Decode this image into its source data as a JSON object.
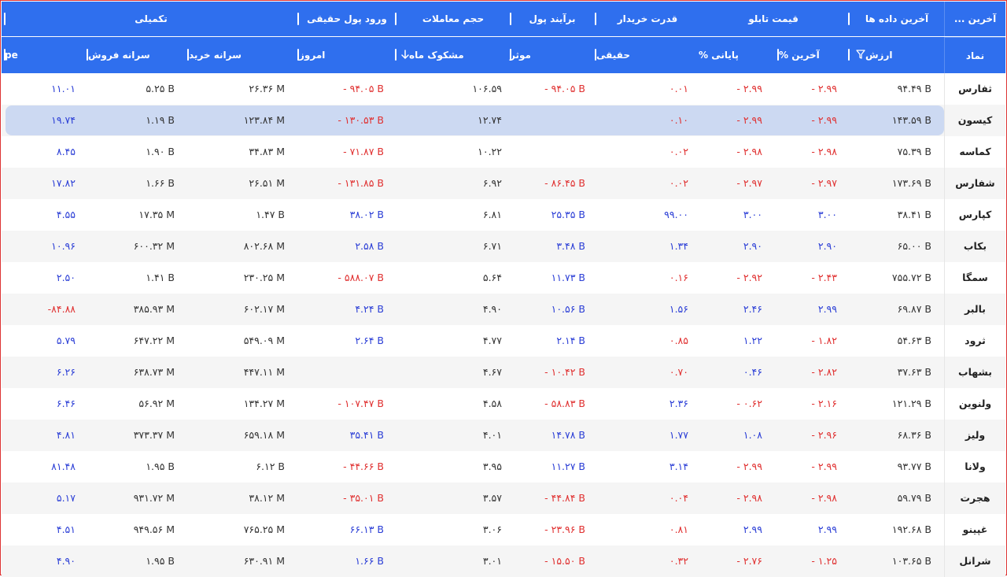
{
  "header_groups": [
    {
      "label": "آخرین ..."
    },
    {
      "label": "آخرین داده ها"
    },
    {
      "label": "قیمت تابلو"
    },
    {
      "label": "قدرت خریدار"
    },
    {
      "label": "برآیند پول"
    },
    {
      "label": "حجم معاملات"
    },
    {
      "label": "ورود پول حقیقی"
    },
    {
      "label": "تکمیلی"
    }
  ],
  "columns": [
    {
      "key": "symbol",
      "label": "نماد"
    },
    {
      "key": "value",
      "label": "ارزش"
    },
    {
      "key": "last_pct",
      "label": "آخرین %"
    },
    {
      "key": "close_pct",
      "label": "پایانی %"
    },
    {
      "key": "real",
      "label": "حقیقی"
    },
    {
      "key": "effective",
      "label": "موثر"
    },
    {
      "key": "suspicious_month",
      "label": "مشکوک ماه"
    },
    {
      "key": "today",
      "label": "امروز"
    },
    {
      "key": "buy_per_capita",
      "label": "سرانه خرید"
    },
    {
      "key": "sell_per_capita",
      "label": "سرانه فروش"
    },
    {
      "key": "pe",
      "label": "pe"
    }
  ],
  "icons": {
    "filter": "filter-icon",
    "sort": "sort-down-icon"
  },
  "colors": {
    "header": "#2f6fee",
    "negative": "#e03030",
    "positive": "#2b3ed6",
    "selected_row": "#ccd9f2",
    "alt_row": "#f5f5f5"
  },
  "selected_row_index": 1,
  "rows": [
    {
      "symbol": "ثفارس",
      "value": "۹۴.۴۹ B",
      "last_pct": "- ۲.۹۹",
      "close_pct": "- ۲.۹۹",
      "real": "۰.۰۱",
      "effective": "- ۹۴.۰۵ B",
      "suspicious_month": "۱۰۶.۵۹",
      "today": "- ۹۴.۰۵ B",
      "buy_per_capita": "۲۶.۳۶ M",
      "sell_per_capita": "۵.۲۵ B",
      "pe": "۱۱.۰۱"
    },
    {
      "symbol": "کیسون",
      "value": "۱۴۳.۵۹ B",
      "last_pct": "- ۲.۹۹",
      "close_pct": "- ۲.۹۹",
      "real": "۰.۱۰",
      "effective": "",
      "suspicious_month": "۱۲.۷۴",
      "today": "- ۱۳۰.۵۳ B",
      "buy_per_capita": "۱۲۳.۸۴ M",
      "sell_per_capita": "۱.۱۹ B",
      "pe": "۱۹.۷۴"
    },
    {
      "symbol": "کماسه",
      "value": "۷۵.۳۹ B",
      "last_pct": "- ۲.۹۸",
      "close_pct": "- ۲.۹۸",
      "real": "۰.۰۲",
      "effective": "",
      "suspicious_month": "۱۰.۲۲",
      "today": "- ۷۱.۸۷ B",
      "buy_per_capita": "۳۴.۸۳ M",
      "sell_per_capita": "۱.۹۰ B",
      "pe": "۸.۴۵"
    },
    {
      "symbol": "شفارس",
      "value": "۱۷۳.۶۹ B",
      "last_pct": "- ۲.۹۷",
      "close_pct": "- ۲.۹۷",
      "real": "۰.۰۲",
      "effective": "- ۸۶.۴۵ B",
      "suspicious_month": "۶.۹۲",
      "today": "- ۱۳۱.۸۵ B",
      "buy_per_capita": "۲۶.۵۱ M",
      "sell_per_capita": "۱.۶۶ B",
      "pe": "۱۷.۸۲"
    },
    {
      "symbol": "کپارس",
      "value": "۳۸.۴۱ B",
      "last_pct": "۳.۰۰",
      "close_pct": "۳.۰۰",
      "real": "۹۹.۰۰",
      "effective": "۲۵.۳۵ B",
      "suspicious_month": "۶.۸۱",
      "today": "۳۸.۰۲ B",
      "buy_per_capita": "۱.۴۷ B",
      "sell_per_capita": "۱۷.۳۵ M",
      "pe": "۴.۵۵"
    },
    {
      "symbol": "بکاب",
      "value": "۶۵.۰۰ B",
      "last_pct": "۲.۹۰",
      "close_pct": "۲.۹۰",
      "real": "۱.۳۴",
      "effective": "۳.۴۸ B",
      "suspicious_month": "۶.۷۱",
      "today": "۲.۵۸ B",
      "buy_per_capita": "۸۰۲.۶۸ M",
      "sell_per_capita": "۶۰۰.۳۲ M",
      "pe": "۱۰.۹۶"
    },
    {
      "symbol": "سمگا",
      "value": "۷۵۵.۷۲ B",
      "last_pct": "- ۲.۴۳",
      "close_pct": "- ۲.۹۲",
      "real": "۰.۱۶",
      "effective": "۱۱.۷۳ B",
      "suspicious_month": "۵.۶۴",
      "today": "- ۵۸۸.۰۷ B",
      "buy_per_capita": "۲۳۰.۲۵ M",
      "sell_per_capita": "۱.۴۱ B",
      "pe": "۲.۵۰"
    },
    {
      "symbol": "بالبر",
      "value": "۶۹.۸۷ B",
      "last_pct": "۲.۹۹",
      "close_pct": "۲.۴۶",
      "real": "۱.۵۶",
      "effective": "۱۰.۵۶ B",
      "suspicious_month": "۴.۹۰",
      "today": "۴.۲۴ B",
      "buy_per_capita": "۶۰۲.۱۷ M",
      "sell_per_capita": "۳۸۵.۹۳ M",
      "pe": "-۸۴.۸۸"
    },
    {
      "symbol": "ثرود",
      "value": "۵۴.۶۳ B",
      "last_pct": "- ۱.۸۲",
      "close_pct": "۱.۲۲",
      "real": "۰.۸۵",
      "effective": "۲.۱۴ B",
      "suspicious_month": "۴.۷۷",
      "today": "۲.۶۴ B",
      "buy_per_capita": "۵۴۹.۰۹ M",
      "sell_per_capita": "۶۴۷.۲۲ M",
      "pe": "۵.۷۹"
    },
    {
      "symbol": "بشهاب",
      "value": "۳۷.۶۳ B",
      "last_pct": "- ۲.۸۲",
      "close_pct": "۰.۴۶",
      "real": "۰.۷۰",
      "effective": "- ۱۰.۴۲ B",
      "suspicious_month": "۴.۶۷",
      "today": "",
      "buy_per_capita": "۴۴۷.۱۱ M",
      "sell_per_capita": "۶۳۸.۷۳ M",
      "pe": "۶.۲۶"
    },
    {
      "symbol": "ولنوین",
      "value": "۱۲۱.۲۹ B",
      "last_pct": "- ۲.۱۶",
      "close_pct": "- ۰.۶۲",
      "real": "۲.۳۶",
      "effective": "- ۵۸.۸۳ B",
      "suspicious_month": "۴.۵۸",
      "today": "- ۱۰۷.۴۷ B",
      "buy_per_capita": "۱۳۴.۲۷ M",
      "sell_per_capita": "۵۶.۹۲ M",
      "pe": "۶.۴۶"
    },
    {
      "symbol": "ولیز",
      "value": "۶۸.۳۶ B",
      "last_pct": "- ۲.۹۶",
      "close_pct": "۱.۰۸",
      "real": "۱.۷۷",
      "effective": "۱۴.۷۸ B",
      "suspicious_month": "۴.۰۱",
      "today": "۳۵.۴۱ B",
      "buy_per_capita": "۶۵۹.۱۸ M",
      "sell_per_capita": "۳۷۳.۳۷ M",
      "pe": "۴.۸۱"
    },
    {
      "symbol": "ولانا",
      "value": "۹۳.۷۷ B",
      "last_pct": "- ۲.۹۹",
      "close_pct": "- ۲.۹۹",
      "real": "۳.۱۴",
      "effective": "۱۱.۲۷ B",
      "suspicious_month": "۳.۹۵",
      "today": "- ۴۴.۶۶ B",
      "buy_per_capita": "۶.۱۲ B",
      "sell_per_capita": "۱.۹۵ B",
      "pe": "۸۱.۴۸"
    },
    {
      "symbol": "هجرت",
      "value": "۵۹.۷۹ B",
      "last_pct": "- ۲.۹۸",
      "close_pct": "- ۲.۹۸",
      "real": "۰.۰۴",
      "effective": "- ۴۴.۸۴ B",
      "suspicious_month": "۳.۵۷",
      "today": "- ۳۵.۰۱ B",
      "buy_per_capita": "۳۸.۱۲ M",
      "sell_per_capita": "۹۳۱.۷۲ M",
      "pe": "۵.۱۷"
    },
    {
      "symbol": "غپینو",
      "value": "۱۹۲.۶۸ B",
      "last_pct": "۲.۹۹",
      "close_pct": "۲.۹۹",
      "real": "۰.۸۱",
      "effective": "- ۲۳.۹۶ B",
      "suspicious_month": "۳.۰۶",
      "today": "۶۶.۱۳ B",
      "buy_per_capita": "۷۶۵.۲۵ M",
      "sell_per_capita": "۹۴۹.۵۶ M",
      "pe": "۴.۵۱"
    },
    {
      "symbol": "شرانل",
      "value": "۱۰۳.۶۵ B",
      "last_pct": "- ۱.۲۵",
      "close_pct": "- ۲.۷۶",
      "real": "۰.۳۲",
      "effective": "- ۱۵.۵۰ B",
      "suspicious_month": "۳.۰۱",
      "today": "۱.۶۶ B",
      "buy_per_capita": "۶۳۰.۹۱ M",
      "sell_per_capita": "۱.۹۵ B",
      "pe": "۴.۹۰"
    }
  ]
}
